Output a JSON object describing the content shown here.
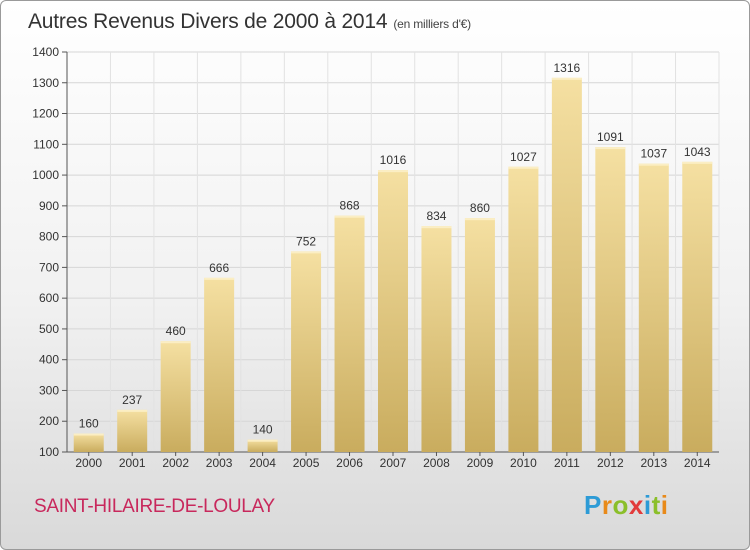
{
  "title": {
    "main": "Autres Revenus Divers de 2000 à 2014",
    "unit": "(en milliers d'€)"
  },
  "location": "SAINT-HILAIRE-DE-LOULAY",
  "brand": {
    "text": "Proxiti"
  },
  "colors": {
    "bar_light": "#f4dfa0",
    "bar_dark": "#c8aa5c",
    "location_text": "#c8285c"
  },
  "chart_data": {
    "type": "bar",
    "categories": [
      "2000",
      "2001",
      "2002",
      "2003",
      "2004",
      "2005",
      "2006",
      "2007",
      "2008",
      "2009",
      "2010",
      "2011",
      "2012",
      "2013",
      "2014"
    ],
    "values": [
      160,
      237,
      460,
      666,
      140,
      752,
      868,
      1016,
      834,
      860,
      1027,
      1316,
      1091,
      1037,
      1043
    ],
    "title": "Autres Revenus Divers de 2000 à 2014",
    "xlabel": "",
    "ylabel": "",
    "ylim": [
      100,
      1400
    ],
    "yticks": [
      100,
      200,
      300,
      400,
      500,
      600,
      700,
      800,
      900,
      1000,
      1100,
      1200,
      1300,
      1400
    ],
    "grid": true
  }
}
